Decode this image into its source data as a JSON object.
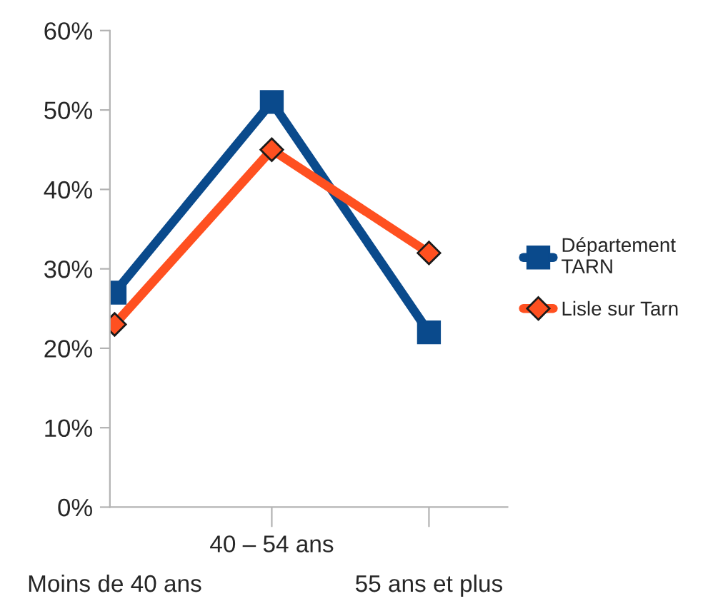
{
  "chart_data": {
    "type": "line",
    "categories": [
      "Moins de 40 ans",
      "40 – 54 ans",
      "55 ans et plus"
    ],
    "series": [
      {
        "name": "Département\nTARN",
        "color": "#0a4a8c",
        "values": [
          27,
          51,
          22
        ],
        "marker": "square"
      },
      {
        "name": "Lisle sur Tarn",
        "color": "#ff5020",
        "values": [
          23,
          45,
          32
        ],
        "marker": "diamond"
      }
    ],
    "ylim": [
      0,
      60
    ],
    "yticks": [
      {
        "value": 0,
        "label": "0%"
      },
      {
        "value": 10,
        "label": "10%"
      },
      {
        "value": 20,
        "label": "20%"
      },
      {
        "value": 30,
        "label": "30%"
      },
      {
        "value": 40,
        "label": "40%"
      },
      {
        "value": 50,
        "label": "50%"
      },
      {
        "value": 60,
        "label": "60%"
      }
    ],
    "grid": false,
    "legend": "right",
    "line_style": "solid"
  }
}
